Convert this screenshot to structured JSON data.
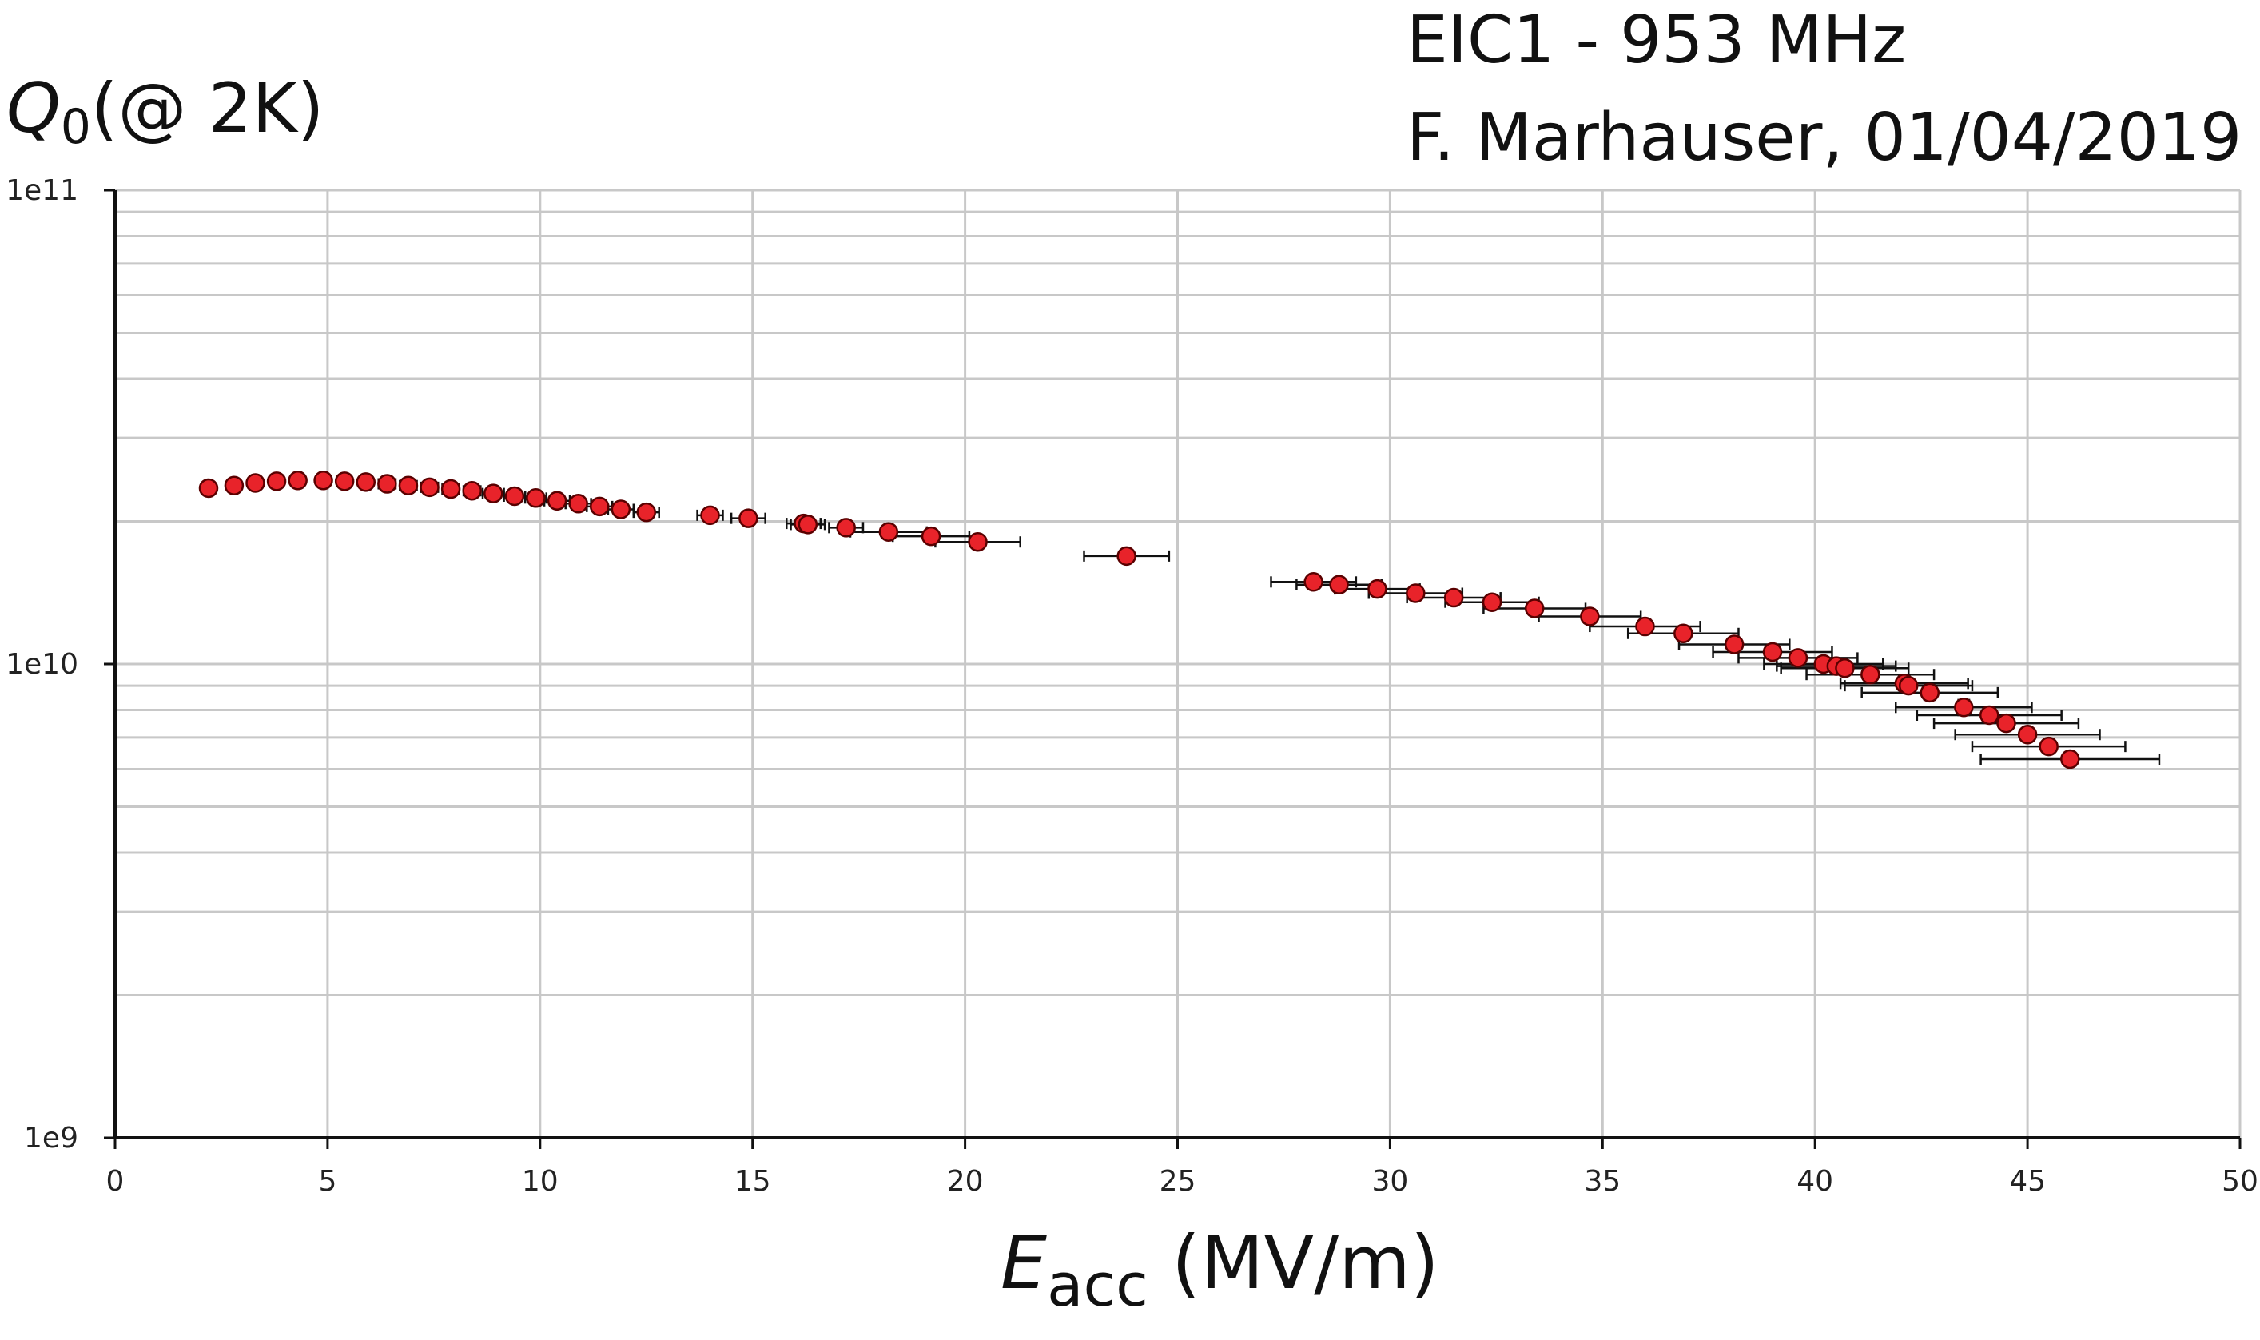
{
  "chart_data": {
    "type": "scatter",
    "title_lines": [
      "EIC1 - 953 MHz",
      "F. Marhauser, 01/04/2019"
    ],
    "ylabel": {
      "main": "Q",
      "sub": "0",
      "rest": "(@ 2K)"
    },
    "xlabel": {
      "main": "E",
      "sub": "acc",
      "rest": " (MV/m)"
    },
    "x_ticks": [
      "0",
      "5",
      "10",
      "15",
      "20",
      "25",
      "30",
      "35",
      "40",
      "45",
      "50"
    ],
    "y_ticks": [
      "1e9",
      "1e10",
      "1e11"
    ],
    "xlim": [
      0,
      50
    ],
    "ylim": [
      1000000000.0,
      100000000000.0
    ],
    "yscale": "log",
    "grid": true,
    "marker_color": "#e8232a",
    "marker_edge": "#5a0000",
    "series": [
      {
        "x": [
          2.2,
          2.8,
          3.3,
          3.8,
          4.3,
          4.9,
          5.4,
          5.9,
          6.4,
          6.9,
          7.4,
          7.9,
          8.4,
          8.9,
          9.4,
          9.9,
          10.4,
          10.9,
          11.4,
          11.9,
          12.5,
          14.0,
          14.9,
          16.2,
          16.3,
          17.2,
          18.2,
          19.2,
          20.3,
          23.8,
          28.2,
          28.8,
          29.7,
          30.6,
          31.5,
          32.4,
          33.4,
          34.7,
          36.0,
          36.9,
          38.1,
          39.0,
          39.6,
          40.2,
          40.5,
          40.7,
          41.3,
          42.1,
          42.2,
          42.7,
          43.5,
          44.1,
          44.5,
          45.0,
          45.5,
          46.0
        ],
        "y": [
          23500000000.0,
          23800000000.0,
          24100000000.0,
          24300000000.0,
          24400000000.0,
          24400000000.0,
          24300000000.0,
          24200000000.0,
          24000000000.0,
          23800000000.0,
          23600000000.0,
          23400000000.0,
          23200000000.0,
          22900000000.0,
          22600000000.0,
          22400000000.0,
          22100000000.0,
          21800000000.0,
          21500000000.0,
          21200000000.0,
          20900000000.0,
          20600000000.0,
          20300000000.0,
          19800000000.0,
          19700000000.0,
          19400000000.0,
          19000000000.0,
          18600000000.0,
          18100000000.0,
          16900000000.0,
          14900000000.0,
          14700000000.0,
          14400000000.0,
          14100000000.0,
          13800000000.0,
          13500000000.0,
          13100000000.0,
          12600000000.0,
          12000000000.0,
          11600000000.0,
          11000000000.0,
          10600000000.0,
          10300000000.0,
          10000000000.0,
          9900000000.0,
          9800000000.0,
          9500000000.0,
          9100000000.0,
          9000000000.0,
          8700000000.0,
          8100000000.0,
          7800000000.0,
          7500000000.0,
          7100000000.0,
          6700000000.0,
          6300000000.0
        ],
        "x_err": [
          0.1,
          0.1,
          0.1,
          0.1,
          0.1,
          0.15,
          0.15,
          0.15,
          0.2,
          0.2,
          0.2,
          0.2,
          0.2,
          0.25,
          0.25,
          0.25,
          0.3,
          0.3,
          0.3,
          0.3,
          0.3,
          0.3,
          0.4,
          0.4,
          0.4,
          0.4,
          0.9,
          0.9,
          1.0,
          1.0,
          1.0,
          1.0,
          1.0,
          1.1,
          1.1,
          1.1,
          1.2,
          1.2,
          1.3,
          1.3,
          1.3,
          1.4,
          1.4,
          1.4,
          1.4,
          1.5,
          1.5,
          1.5,
          1.5,
          1.6,
          1.6,
          1.7,
          1.7,
          1.7,
          1.8,
          2.1
        ],
        "y_err": [
          400000000.0,
          400000000.0,
          400000000.0,
          400000000.0,
          400000000.0,
          400000000.0,
          400000000.0,
          400000000.0,
          400000000.0,
          400000000.0,
          400000000.0,
          400000000.0,
          400000000.0,
          400000000.0,
          400000000.0,
          400000000.0,
          400000000.0,
          400000000.0,
          400000000.0,
          400000000.0,
          400000000.0,
          500000000.0,
          500000000.0,
          500000000.0,
          500000000.0,
          500000000.0,
          500000000.0,
          500000000.0,
          500000000.0,
          500000000.0,
          400000000.0,
          400000000.0,
          400000000.0,
          400000000.0,
          400000000.0,
          400000000.0,
          400000000.0,
          400000000.0,
          400000000.0,
          300000000.0,
          300000000.0,
          300000000.0,
          300000000.0,
          300000000.0,
          300000000.0,
          300000000.0,
          300000000.0,
          300000000.0,
          300000000.0,
          300000000.0,
          300000000.0,
          200000000.0,
          200000000.0,
          200000000.0,
          200000000.0,
          200000000.0
        ]
      }
    ]
  }
}
